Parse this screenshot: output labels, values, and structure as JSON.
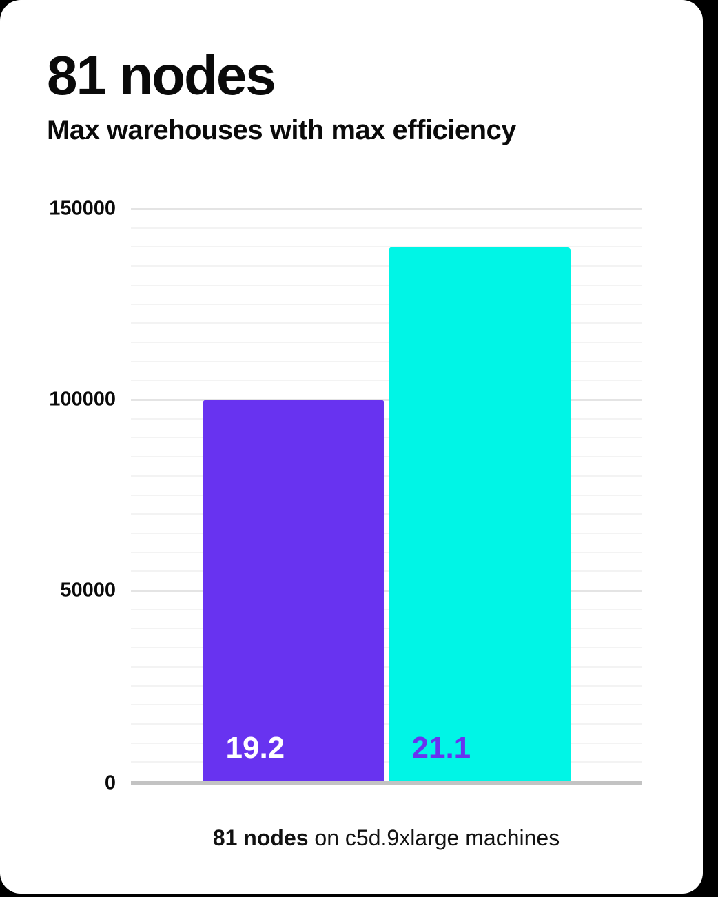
{
  "header": {
    "title": "81 nodes",
    "subtitle": "Max warehouses with max efficiency"
  },
  "caption": {
    "bold": "81 nodes",
    "rest": " on c5d.9xlarge machines"
  },
  "colors": {
    "page_background": "#000000",
    "card_background": "#ffffff",
    "text": "#0a0a0a",
    "grid_minor": "#f3f3f3",
    "grid_major": "#e4e4e4",
    "axis_line": "#c3c3c3",
    "bars": [
      "#6833f0",
      "#00f5e6"
    ],
    "bar_label_colors": [
      "#ffffff",
      "#6833f0"
    ]
  },
  "chart_data": {
    "type": "bar",
    "title": "81 nodes",
    "subtitle": "Max warehouses with max efficiency",
    "categories": [
      "19.2",
      "21.1"
    ],
    "series": [
      {
        "name": "Max warehouses with max efficiency",
        "values": [
          100000,
          140000
        ]
      }
    ],
    "bar_labels": [
      "19.2",
      "21.1"
    ],
    "xlabel": "",
    "ylabel": "",
    "ylim": [
      0,
      150000
    ],
    "yticks": [
      0,
      50000,
      100000,
      150000
    ],
    "ytick_labels": [
      "0",
      "50000",
      "100000",
      "150000"
    ],
    "minor_grid_step": 5000,
    "grid": true,
    "legend": false,
    "caption": "81 nodes on c5d.9xlarge machines"
  }
}
